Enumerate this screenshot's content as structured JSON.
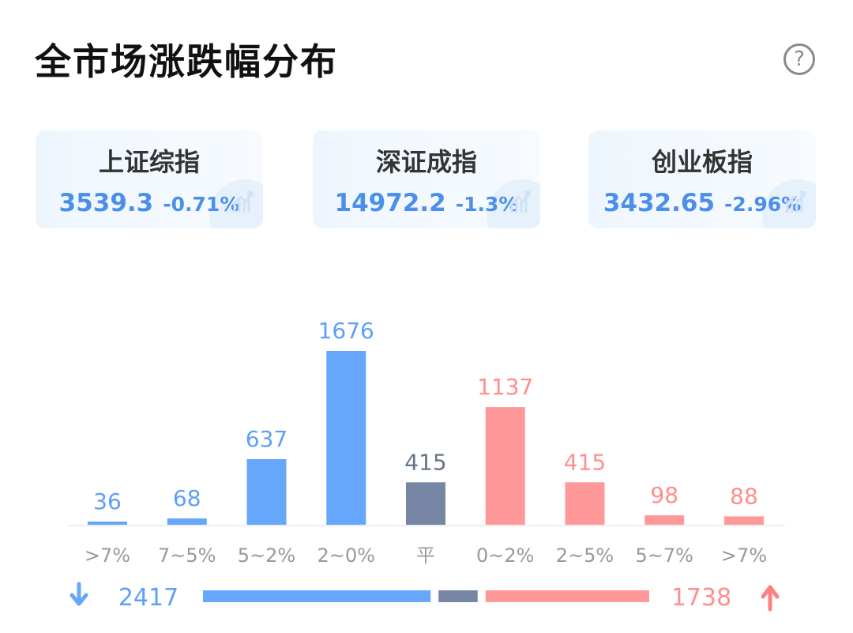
{
  "header": {
    "title": "全市场涨跌幅分布",
    "help_icon": "question-circle-icon",
    "help_glyph": "?"
  },
  "indices": [
    {
      "name": "上证综指",
      "value": "3539.3",
      "change": "-0.71%"
    },
    {
      "name": "深证成指",
      "value": "14972.2",
      "change": "-1.3%"
    },
    {
      "name": "创业板指",
      "value": "3432.65",
      "change": "-2.96%"
    }
  ],
  "chart_data": {
    "type": "bar",
    "categories": [
      ">7%",
      "7~5%",
      "5~2%",
      "2~0%",
      "平",
      "0~2%",
      "2~5%",
      "5~7%",
      ">7%"
    ],
    "values": [
      36,
      68,
      637,
      1676,
      415,
      1137,
      415,
      98,
      88
    ],
    "groups": [
      "down",
      "down",
      "down",
      "down",
      "flat",
      "up",
      "up",
      "up",
      "up"
    ],
    "ylim": [
      0,
      1676
    ]
  },
  "summary": {
    "down_total": "2417",
    "up_total": "1738",
    "down_count": 2417,
    "flat_count": 415,
    "up_count": 1738,
    "down_icon": "arrow-down-icon",
    "up_icon": "arrow-up-icon"
  },
  "colors": {
    "down": "#66a6fb",
    "flat": "#7686a4",
    "up": "#ff9898",
    "down_text": "#5da0f6",
    "flat_text": "#667585",
    "up_text": "#ff8e8e",
    "axis_text": "#999999",
    "baseline": "#eeeeee",
    "index_blue": "#4b8fea"
  }
}
